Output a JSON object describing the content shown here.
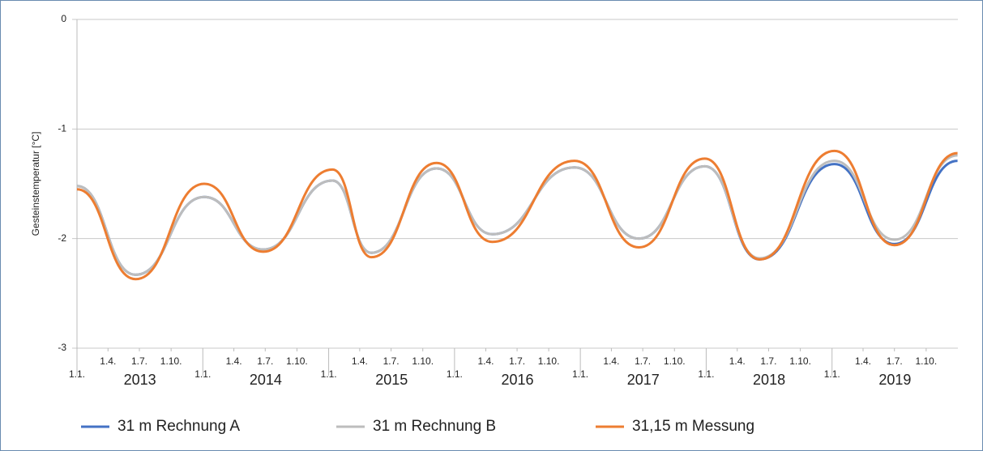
{
  "chart_data": {
    "type": "line",
    "ylabel": "Gesteinstemperatur [°C]",
    "x": [
      "2013-01-01",
      "2013-06-20",
      "2014-01-05",
      "2014-06-25",
      "2015-01-12",
      "2015-05-05",
      "2015-11-10",
      "2016-04-20",
      "2016-12-15",
      "2017-06-20",
      "2017-12-28",
      "2018-06-05",
      "2019-01-08",
      "2019-07-01",
      "2019-12-31"
    ],
    "series": [
      {
        "name": "31 m Rechnung A",
        "color": "#4472c4",
        "values": [
          -1.52,
          -2.33,
          -1.62,
          -2.1,
          -1.47,
          -2.13,
          -1.36,
          -1.96,
          -1.35,
          -2.0,
          -1.34,
          -2.19,
          -1.32,
          -2.05,
          -1.29
        ]
      },
      {
        "name": "31 m Rechnung B",
        "color": "#bdbdbd",
        "values": [
          -1.52,
          -2.33,
          -1.62,
          -2.1,
          -1.47,
          -2.13,
          -1.36,
          -1.96,
          -1.35,
          -2.0,
          -1.34,
          -2.18,
          -1.29,
          -2.01,
          -1.24
        ]
      },
      {
        "name": "31,15 m Messung",
        "color": "#ed7d31",
        "values": [
          -1.55,
          -2.37,
          -1.5,
          -2.12,
          -1.37,
          -2.17,
          -1.31,
          -2.03,
          -1.29,
          -2.08,
          -1.27,
          -2.19,
          -1.2,
          -2.06,
          -1.22
        ]
      }
    ],
    "ylim": [
      -3,
      0
    ],
    "yticks": [
      -3,
      -2,
      -1,
      0
    ],
    "grid": true,
    "xlim": [
      "2013-01-01",
      "2020-01-01"
    ],
    "xticks": [
      {
        "value": "2013-01-01",
        "label": "1.1."
      },
      {
        "value": "2013-04-01",
        "label": "1.4."
      },
      {
        "value": "2013-07-01",
        "label": "1.7."
      },
      {
        "value": "2013-10-01",
        "label": "1.10."
      },
      {
        "value": "2014-01-01",
        "label": "1.1."
      },
      {
        "value": "2014-04-01",
        "label": "1.4."
      },
      {
        "value": "2014-07-01",
        "label": "1.7."
      },
      {
        "value": "2014-10-01",
        "label": "1.10."
      },
      {
        "value": "2015-01-01",
        "label": "1.1."
      },
      {
        "value": "2015-04-01",
        "label": "1.4."
      },
      {
        "value": "2015-07-01",
        "label": "1.7."
      },
      {
        "value": "2015-10-01",
        "label": "1.10."
      },
      {
        "value": "2016-01-01",
        "label": "1.1."
      },
      {
        "value": "2016-04-01",
        "label": "1.4."
      },
      {
        "value": "2016-07-01",
        "label": "1.7."
      },
      {
        "value": "2016-10-01",
        "label": "1.10."
      },
      {
        "value": "2017-01-01",
        "label": "1.1."
      },
      {
        "value": "2017-04-01",
        "label": "1.4."
      },
      {
        "value": "2017-07-01",
        "label": "1.7."
      },
      {
        "value": "2017-10-01",
        "label": "1.10."
      },
      {
        "value": "2018-01-01",
        "label": "1.1."
      },
      {
        "value": "2018-04-01",
        "label": "1.4."
      },
      {
        "value": "2018-07-01",
        "label": "1.7."
      },
      {
        "value": "2018-10-01",
        "label": "1.10."
      },
      {
        "value": "2019-01-01",
        "label": "1.1."
      },
      {
        "value": "2019-04-01",
        "label": "1.4."
      },
      {
        "value": "2019-07-01",
        "label": "1.7."
      },
      {
        "value": "2019-10-01",
        "label": "1.10."
      }
    ],
    "year_labels": [
      "2013",
      "2014",
      "2015",
      "2016",
      "2017",
      "2018",
      "2019"
    ],
    "legend": "bottom"
  }
}
